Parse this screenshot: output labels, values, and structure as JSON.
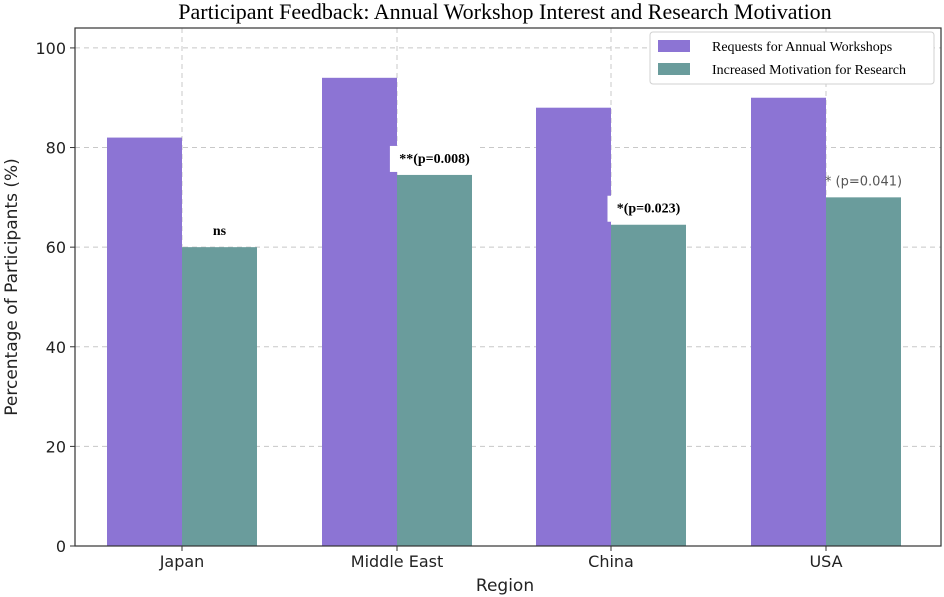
{
  "chart_data": {
    "type": "bar",
    "title": "Participant Feedback: Annual Workshop Interest and Research Motivation",
    "xlabel": "Region",
    "ylabel": "Percentage of Participants (%)",
    "categories": [
      "Japan",
      "Middle East",
      "China",
      "USA"
    ],
    "ylim": [
      0,
      104
    ],
    "yticks": [
      "0",
      "20",
      "40",
      "60",
      "80",
      "100"
    ],
    "grid": true,
    "legend_position": "top-right",
    "series": [
      {
        "name": "Requests for Annual Workshops",
        "color": "#8c74d4",
        "values": [
          82,
          94,
          88,
          90
        ]
      },
      {
        "name": "Increased Motivation for Research",
        "color": "#6a9c9c",
        "values": [
          60,
          74.5,
          64.5,
          70
        ]
      }
    ],
    "annotations": [
      {
        "category": "Japan",
        "text": "ns",
        "style": "bold"
      },
      {
        "category": "Middle East",
        "text": "**(p=0.008)",
        "style": "bold"
      },
      {
        "category": "China",
        "text": "*(p=0.023)",
        "style": "bold"
      },
      {
        "category": "USA",
        "text": "* (p=0.041)",
        "style": "plain"
      }
    ]
  }
}
